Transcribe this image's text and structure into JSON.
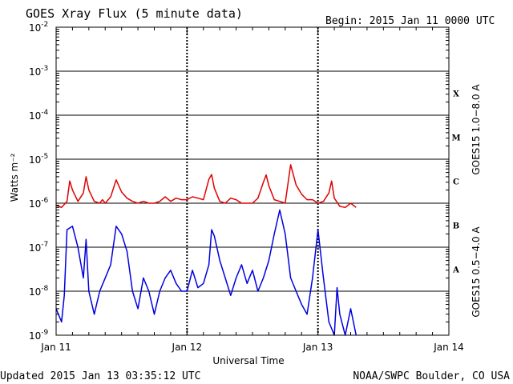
{
  "header": {
    "title": "GOES Xray Flux (5 minute data)",
    "begin": "Begin:  2015 Jan 11 0000 UTC"
  },
  "footer": {
    "updated": "Updated 2015 Jan 13 03:35:12 UTC",
    "credit": "NOAA/SWPC Boulder, CO USA"
  },
  "chart_data": {
    "type": "line",
    "title": "GOES Xray Flux (5 minute data)",
    "xlabel": "Universal Time",
    "ylabel": "Watts m⁻²",
    "yscale": "log",
    "ylim": [
      1e-09,
      0.01
    ],
    "xlim_hours": [
      0,
      72
    ],
    "x_ticks": [
      "Jan 11",
      "Jan 12",
      "Jan 13",
      "Jan 14"
    ],
    "y_ticks": [
      {
        "base": "10",
        "exp": "-9"
      },
      {
        "base": "10",
        "exp": "-8"
      },
      {
        "base": "10",
        "exp": "-7"
      },
      {
        "base": "10",
        "exp": "-6"
      },
      {
        "base": "10",
        "exp": "-5"
      },
      {
        "base": "10",
        "exp": "-4"
      },
      {
        "base": "10",
        "exp": "-3"
      },
      {
        "base": "10",
        "exp": "-2"
      }
    ],
    "flare_classes": [
      {
        "label": "X",
        "value": 0.0001
      },
      {
        "label": "M",
        "value": 1e-05
      },
      {
        "label": "C",
        "value": 1e-06
      },
      {
        "label": "B",
        "value": 1e-07
      },
      {
        "label": "A",
        "value": 1e-08
      }
    ],
    "grid": true,
    "series": [
      {
        "name": "GOES15 1.0−8.0 A",
        "color": "#e00000",
        "x_hours": [
          0,
          1,
          2,
          2.5,
          3,
          4,
          5,
          5.5,
          6,
          7,
          8,
          8.5,
          9,
          10,
          11,
          12,
          13,
          14,
          15,
          16,
          17,
          18,
          19,
          20,
          21,
          22,
          23,
          24,
          25,
          26,
          27,
          28,
          28.5,
          29,
          30,
          31,
          32,
          33,
          34,
          35,
          36,
          37,
          38,
          38.5,
          39,
          40,
          41,
          42,
          43,
          44,
          45,
          46,
          47,
          48,
          49,
          50,
          50.5,
          51,
          52,
          53,
          54,
          55
        ],
        "values": [
          9e-07,
          8e-07,
          1.1e-06,
          3.2e-06,
          2e-06,
          1.1e-06,
          1.7e-06,
          4e-06,
          2e-06,
          1.1e-06,
          1e-06,
          1.2e-06,
          1e-06,
          1.4e-06,
          3.4e-06,
          1.8e-06,
          1.3e-06,
          1.1e-06,
          1e-06,
          1.1e-06,
          1e-06,
          1e-06,
          1.1e-06,
          1.4e-06,
          1.1e-06,
          1.3e-06,
          1.2e-06,
          1.2e-06,
          1.4e-06,
          1.3e-06,
          1.2e-06,
          3.5e-06,
          4.5e-06,
          2.2e-06,
          1.1e-06,
          1e-06,
          1.3e-06,
          1.2e-06,
          1e-06,
          1e-06,
          1e-06,
          1.3e-06,
          3e-06,
          4.4e-06,
          2.5e-06,
          1.2e-06,
          1.1e-06,
          1e-06,
          7.5e-06,
          2.6e-06,
          1.6e-06,
          1.2e-06,
          1.2e-06,
          1e-06,
          1.1e-06,
          1.7e-06,
          3.2e-06,
          1.3e-06,
          8.5e-07,
          8e-07,
          1e-06,
          8e-07
        ]
      },
      {
        "name": "GOES15 0.5−4.0 A",
        "color": "#0000e0",
        "x_hours": [
          0,
          1,
          1.5,
          2,
          3,
          4,
          5,
          5.5,
          6,
          7,
          8,
          9,
          10,
          11,
          12,
          13,
          14,
          15,
          16,
          17,
          18,
          19,
          20,
          21,
          22,
          23,
          24,
          25,
          26,
          27,
          28,
          28.5,
          29,
          30,
          31,
          32,
          33,
          34,
          35,
          36,
          37,
          38,
          39,
          40,
          41,
          42,
          43,
          44,
          45,
          46,
          47,
          48,
          49,
          50,
          51,
          51.5,
          52,
          53,
          54,
          55
        ],
        "values": [
          4e-09,
          2e-09,
          8e-09,
          2.5e-07,
          3e-07,
          1e-07,
          2e-08,
          1.5e-07,
          1e-08,
          3e-09,
          1e-08,
          2e-08,
          4e-08,
          3e-07,
          2e-07,
          8e-08,
          1e-08,
          4e-09,
          2e-08,
          1e-08,
          3e-09,
          1e-08,
          2e-08,
          3e-08,
          1.5e-08,
          1e-08,
          1e-08,
          3e-08,
          1.2e-08,
          1.5e-08,
          4e-08,
          2.5e-07,
          1.8e-07,
          5e-08,
          2e-08,
          8e-09,
          2e-08,
          4e-08,
          1.5e-08,
          3e-08,
          1e-08,
          2e-08,
          5e-08,
          2e-07,
          7e-07,
          2e-07,
          2e-08,
          1e-08,
          5e-09,
          3e-09,
          2e-08,
          2.5e-07,
          2e-08,
          2e-09,
          1e-09,
          1.2e-08,
          3e-09,
          1e-09,
          4e-09,
          1e-09
        ]
      }
    ]
  }
}
